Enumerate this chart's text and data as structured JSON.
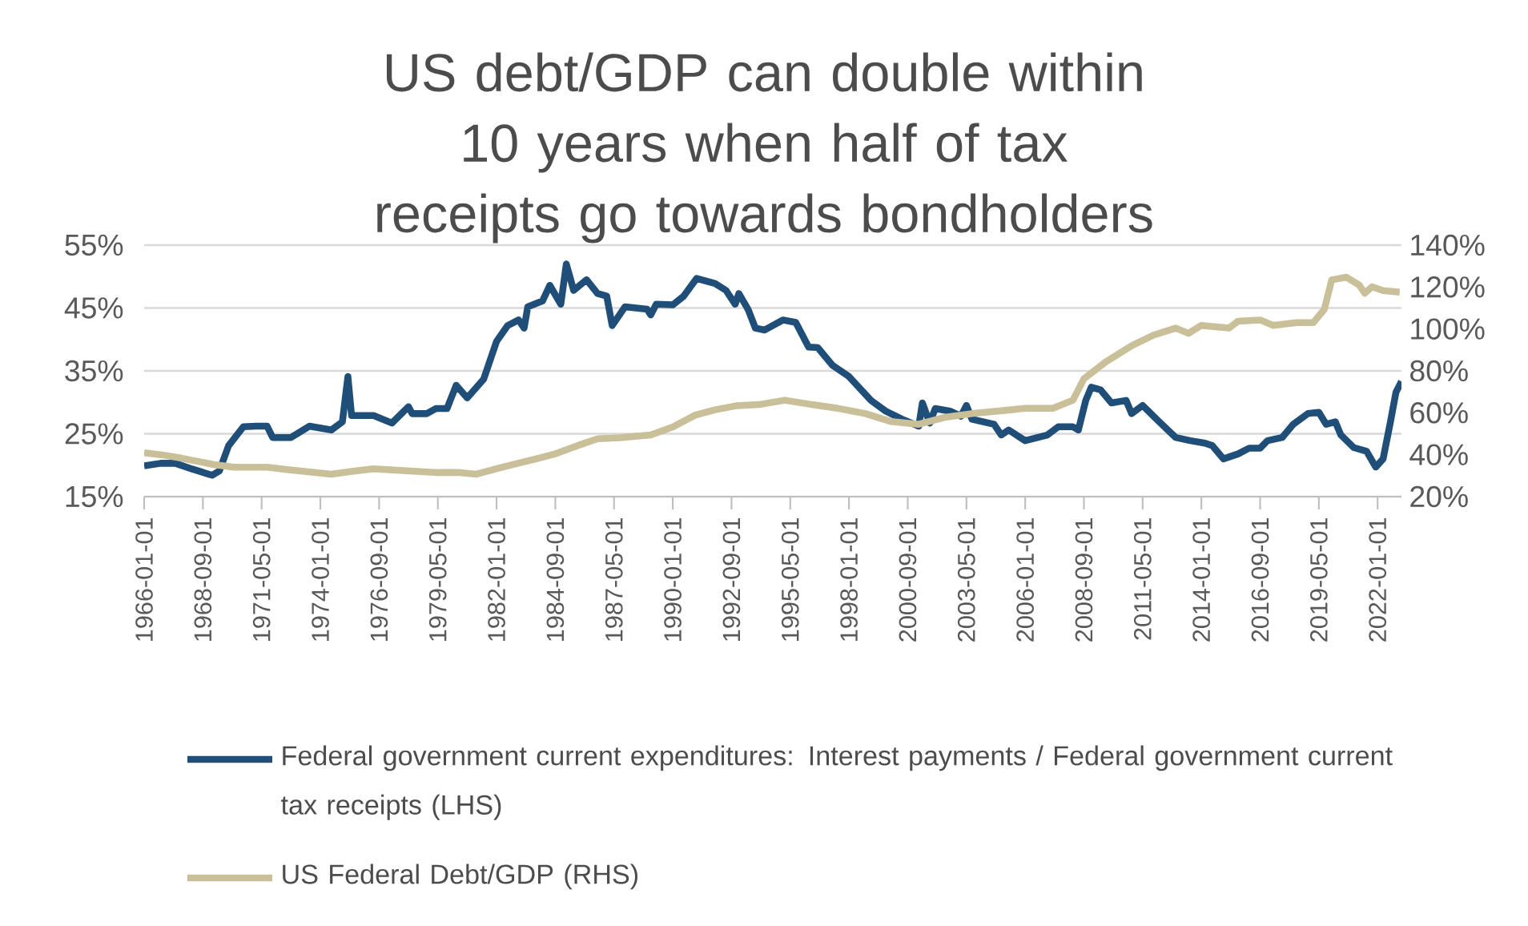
{
  "chart_data": {
    "type": "line",
    "title": "US debt/GDP can double within 10 years when half of tax receipts go towards bondholders",
    "xlim": [
      "1966-01",
      "2023-02"
    ],
    "xticks": [
      "1966-01-01",
      "1968-09-01",
      "1971-05-01",
      "1974-01-01",
      "1976-09-01",
      "1979-05-01",
      "1982-01-01",
      "1984-09-01",
      "1987-05-01",
      "1990-01-01",
      "1992-09-01",
      "1995-05-01",
      "1998-01-01",
      "2000-09-01",
      "2003-05-01",
      "2006-01-01",
      "2008-09-01",
      "2011-05-01",
      "2014-01-01",
      "2016-09-01",
      "2019-05-01",
      "2022-01-01"
    ],
    "ylim": [
      15,
      55
    ],
    "yticks": [
      {
        "value": 15,
        "label": "15%"
      },
      {
        "value": 25,
        "label": "25%"
      },
      {
        "value": 35,
        "label": "35%"
      },
      {
        "value": 45,
        "label": "45%"
      },
      {
        "value": 55,
        "label": "55%"
      }
    ],
    "y2lim": [
      20,
      140
    ],
    "y2ticks": [
      {
        "value": 20,
        "label": "20%"
      },
      {
        "value": 40,
        "label": "40%"
      },
      {
        "value": 60,
        "label": "60%"
      },
      {
        "value": 80,
        "label": "80%"
      },
      {
        "value": 100,
        "label": "100%"
      },
      {
        "value": 120,
        "label": "120%"
      },
      {
        "value": 140,
        "label": "140%"
      }
    ],
    "grid": "y",
    "legend": "bottom",
    "marker": "none",
    "line_style": "solid",
    "series": [
      {
        "name": "Federal government current expenditures: Interest payments / Federal government current tax receipts (LHS)",
        "color": "#1f4e79",
        "axis": "y",
        "x": [
          "1966-01",
          "1966-10",
          "1967-06",
          "1968-03",
          "1969-02",
          "1969-06",
          "1969-11",
          "1970-07",
          "1971-02",
          "1971-08",
          "1971-11",
          "1972-09",
          "1973-07",
          "1974-07",
          "1975-01",
          "1975-04",
          "1975-06",
          "1976-06",
          "1977-04",
          "1978-01",
          "1978-03",
          "1978-11",
          "1979-04",
          "1979-10",
          "1980-03",
          "1980-09",
          "1981-06",
          "1982-01",
          "1982-07",
          "1983-01",
          "1983-04",
          "1983-06",
          "1984-02",
          "1984-06",
          "1984-12",
          "1985-03",
          "1985-07",
          "1986-02",
          "1986-08",
          "1987-01",
          "1987-04",
          "1987-11",
          "1988-11",
          "1989-01",
          "1989-04",
          "1990-01",
          "1990-07",
          "1991-02",
          "1991-12",
          "1992-06",
          "1992-11",
          "1993-01",
          "1993-06",
          "1993-10",
          "1994-03",
          "1995-01",
          "1995-08",
          "1996-03",
          "1996-08",
          "1997-04",
          "1998-01",
          "1999-01",
          "1999-09",
          "2000-06",
          "2001-03",
          "2001-05",
          "2001-09",
          "2001-12",
          "2002-08",
          "2003-02",
          "2003-05",
          "2003-08",
          "2004-08",
          "2004-12",
          "2005-04",
          "2006-01",
          "2007-01",
          "2007-07",
          "2008-03",
          "2008-06",
          "2008-10",
          "2009-01",
          "2009-06",
          "2009-12",
          "2010-08",
          "2010-11",
          "2011-05",
          "2012-02",
          "2012-11",
          "2013-07",
          "2014-03",
          "2014-07",
          "2015-01",
          "2015-09",
          "2016-03",
          "2016-09",
          "2017-01",
          "2017-09",
          "2018-03",
          "2018-11",
          "2019-05",
          "2019-09",
          "2020-02",
          "2020-05",
          "2020-12",
          "2021-07",
          "2021-12",
          "2022-04",
          "2022-08",
          "2022-11",
          "2023-02"
        ],
        "values": [
          19.9,
          20.3,
          20.3,
          19.4,
          18.4,
          19.1,
          23.1,
          26.1,
          26.2,
          26.2,
          24.4,
          24.4,
          26.2,
          25.6,
          26.9,
          34.1,
          27.9,
          27.9,
          26.7,
          29.3,
          28.2,
          28.2,
          29.0,
          29.0,
          32.7,
          30.7,
          33.7,
          39.7,
          42.2,
          43.1,
          41.8,
          45.2,
          46.1,
          48.6,
          45.6,
          52.0,
          47.8,
          49.5,
          47.3,
          46.9,
          42.2,
          45.2,
          44.8,
          43.9,
          45.6,
          45.5,
          46.9,
          49.7,
          48.9,
          47.8,
          45.6,
          47.3,
          44.8,
          41.8,
          41.5,
          43.1,
          42.7,
          38.8,
          38.7,
          35.9,
          34.1,
          30.3,
          28.6,
          27.3,
          26.2,
          29.9,
          26.7,
          29.0,
          28.6,
          27.8,
          29.5,
          27.3,
          26.5,
          24.8,
          25.6,
          23.9,
          24.8,
          26.1,
          26.1,
          25.6,
          30.3,
          32.4,
          32.0,
          29.9,
          30.3,
          28.2,
          29.5,
          26.9,
          24.4,
          23.9,
          23.5,
          23.1,
          21.0,
          21.8,
          22.7,
          22.7,
          23.9,
          24.4,
          26.5,
          28.2,
          28.4,
          26.5,
          26.9,
          24.8,
          22.8,
          22.2,
          19.7,
          21.0,
          26.9,
          31.6,
          33.3
        ]
      },
      {
        "name": "US Federal Debt/GDP (RHS)",
        "color": "#c9bf99",
        "axis": "y2",
        "x": [
          "1966-01",
          "1966-10",
          "1967-09",
          "1969-03",
          "1970-02",
          "1971-08",
          "1972-08",
          "1974-07",
          "1975-06",
          "1976-06",
          "1977-12",
          "1979-05",
          "1980-05",
          "1981-02",
          "1982-01",
          "1982-10",
          "1983-10",
          "1984-09",
          "1985-09",
          "1986-08",
          "1987-08",
          "1989-01",
          "1990-01",
          "1991-01",
          "1991-12",
          "1992-12",
          "1993-12",
          "1995-02",
          "1996-05",
          "1997-07",
          "1998-10",
          "1999-12",
          "2001-03",
          "2002-05",
          "2003-08",
          "2004-11",
          "2006-01",
          "2007-04",
          "2008-03",
          "2008-09",
          "2009-09",
          "2010-11",
          "2011-11",
          "2012-11",
          "2013-06",
          "2014-01",
          "2015-04",
          "2015-09",
          "2016-09",
          "2017-04",
          "2018-05",
          "2019-02",
          "2019-08",
          "2019-12",
          "2020-08",
          "2021-03",
          "2021-06",
          "2021-10",
          "2022-04",
          "2023-01"
        ],
        "values": [
          40.9,
          40.0,
          38.4,
          35.3,
          34.0,
          34.0,
          32.8,
          30.7,
          32.0,
          33.3,
          32.3,
          31.5,
          31.5,
          30.7,
          33.3,
          35.3,
          37.9,
          40.4,
          44.3,
          47.6,
          48.1,
          49.4,
          53.2,
          58.8,
          61.4,
          63.4,
          63.9,
          66.0,
          63.9,
          62.1,
          59.6,
          55.8,
          54.5,
          57.8,
          59.6,
          60.9,
          62.1,
          62.1,
          66.0,
          76.2,
          84.3,
          92.0,
          97.1,
          100.4,
          97.9,
          101.7,
          100.4,
          103.7,
          104.3,
          101.7,
          103.0,
          103.0,
          109.4,
          123.4,
          124.7,
          120.9,
          117.0,
          120.1,
          118.3,
          117.5
        ]
      }
    ]
  }
}
